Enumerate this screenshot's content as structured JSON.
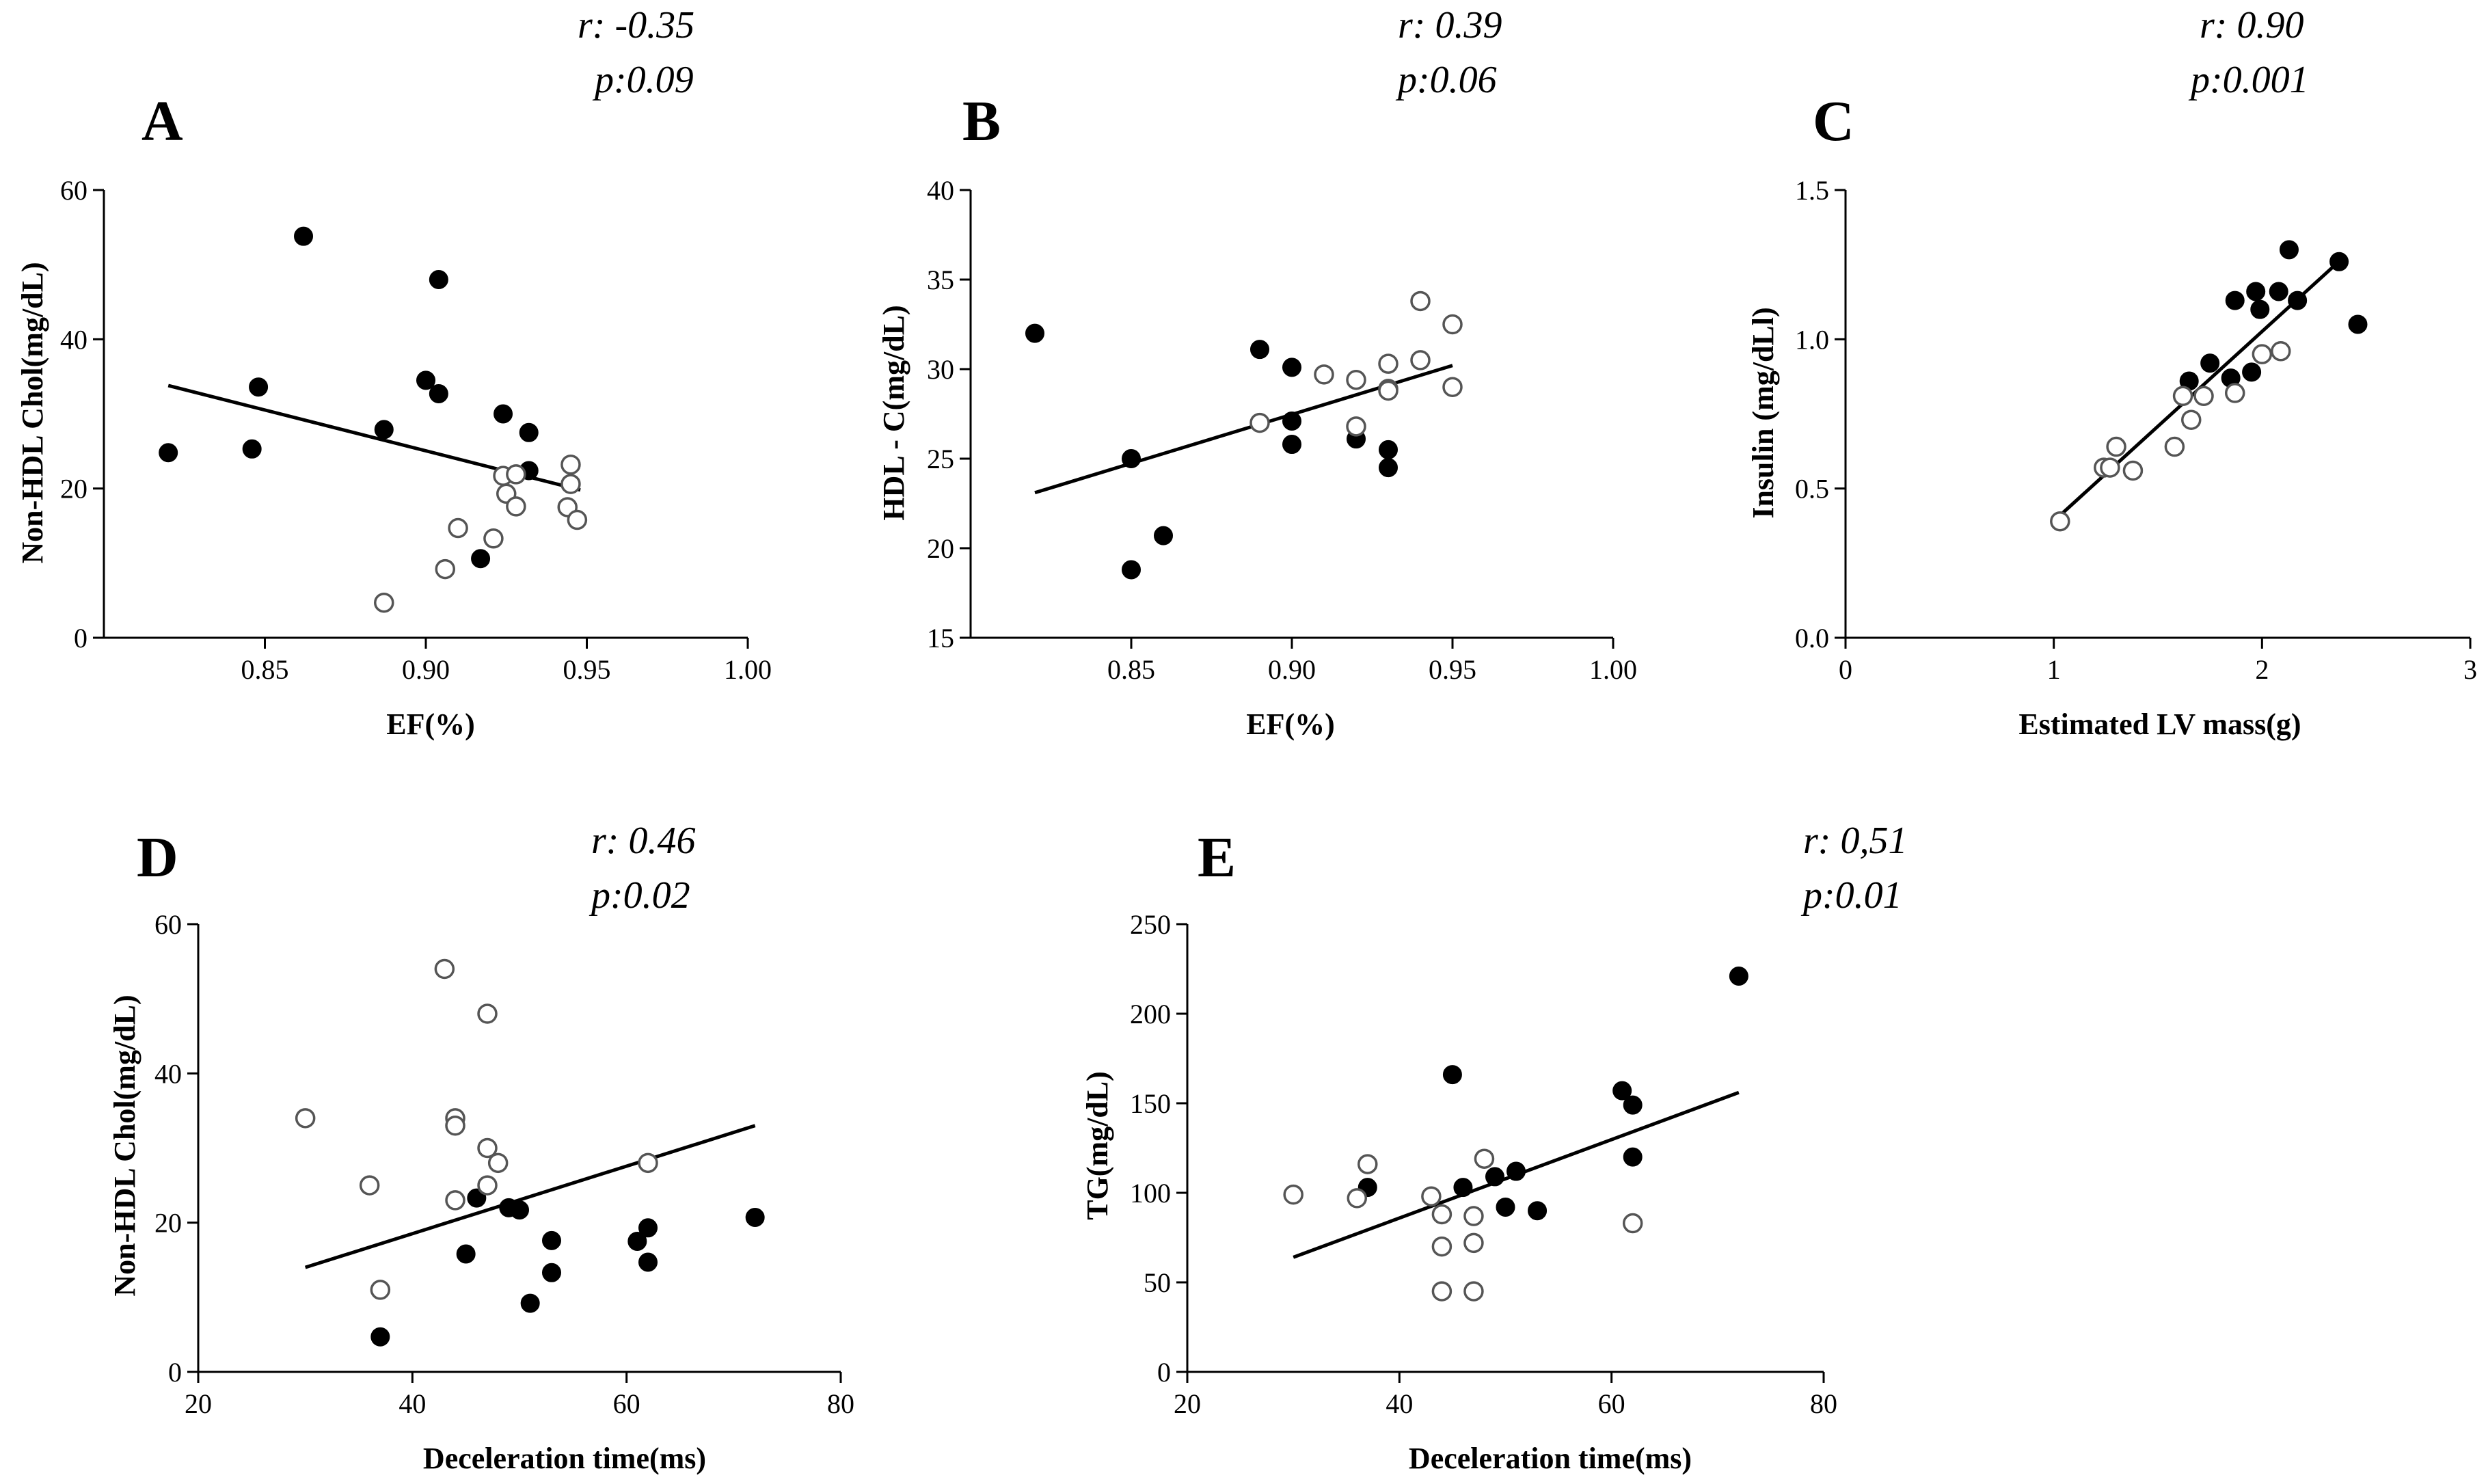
{
  "chart_data": [
    {
      "id": "A",
      "type": "scatter",
      "panel_label": "A",
      "stats": [
        "r: -0.35",
        "p:0.09"
      ],
      "xlabel": "EF(%)",
      "ylabel": "Non-HDL Chol(mg/dL)",
      "xlim": [
        0.8,
        1.0
      ],
      "ylim": [
        0,
        60
      ],
      "xticks": [
        0.85,
        0.9,
        0.95,
        1.0
      ],
      "xtick_labels": [
        "0.85",
        "0.90",
        "0.95",
        "1.00"
      ],
      "yticks": [
        0,
        20,
        40,
        60
      ],
      "ytick_labels": [
        "0",
        "20",
        "40",
        "60"
      ],
      "series": [
        {
          "name": "filled",
          "fill": "#000000",
          "points": [
            [
              0.82,
              24.8
            ],
            [
              0.846,
              25.3
            ],
            [
              0.848,
              33.6
            ],
            [
              0.862,
              53.8
            ],
            [
              0.887,
              27.9
            ],
            [
              0.9,
              34.5
            ],
            [
              0.904,
              32.7
            ],
            [
              0.904,
              48.0
            ],
            [
              0.917,
              10.6
            ],
            [
              0.924,
              30.0
            ],
            [
              0.932,
              27.5
            ],
            [
              0.932,
              22.4
            ]
          ]
        },
        {
          "name": "open",
          "fill": "none",
          "points": [
            [
              0.887,
              4.7
            ],
            [
              0.906,
              9.2
            ],
            [
              0.91,
              14.7
            ],
            [
              0.921,
              13.3
            ],
            [
              0.924,
              21.7
            ],
            [
              0.925,
              19.3
            ],
            [
              0.928,
              17.6
            ],
            [
              0.928,
              21.9
            ],
            [
              0.944,
              17.5
            ],
            [
              0.945,
              23.2
            ],
            [
              0.945,
              20.6
            ],
            [
              0.947,
              15.8
            ]
          ]
        }
      ],
      "fit_line": [
        [
          0.82,
          33.8
        ],
        [
          0.948,
          19.8
        ]
      ]
    },
    {
      "id": "B",
      "type": "scatter",
      "panel_label": "B",
      "stats": [
        "r: 0.39",
        "p:0.06"
      ],
      "xlabel": "EF(%)",
      "ylabel": "HDL - C(mg/dL)",
      "xlim": [
        0.8,
        1.0
      ],
      "ylim": [
        15,
        40
      ],
      "xticks": [
        0.85,
        0.9,
        0.95,
        1.0
      ],
      "xtick_labels": [
        "0.85",
        "0.90",
        "0.95",
        "1.00"
      ],
      "yticks": [
        15,
        20,
        25,
        30,
        35,
        40
      ],
      "ytick_labels": [
        "15",
        "20",
        "25",
        "30",
        "35",
        "40"
      ],
      "series": [
        {
          "name": "filled",
          "fill": "#000000",
          "points": [
            [
              0.82,
              32.0
            ],
            [
              0.85,
              25.0
            ],
            [
              0.85,
              18.8
            ],
            [
              0.86,
              20.7
            ],
            [
              0.89,
              31.1
            ],
            [
              0.9,
              30.1
            ],
            [
              0.9,
              27.1
            ],
            [
              0.9,
              25.8
            ],
            [
              0.92,
              26.1
            ],
            [
              0.93,
              25.5
            ],
            [
              0.93,
              24.5
            ]
          ]
        },
        {
          "name": "open",
          "fill": "none",
          "points": [
            [
              0.89,
              27.0
            ],
            [
              0.91,
              29.7
            ],
            [
              0.92,
              29.4
            ],
            [
              0.92,
              26.8
            ],
            [
              0.93,
              30.3
            ],
            [
              0.93,
              28.9
            ],
            [
              0.93,
              28.8
            ],
            [
              0.94,
              33.8
            ],
            [
              0.94,
              30.5
            ],
            [
              0.95,
              32.5
            ],
            [
              0.95,
              29.0
            ]
          ]
        }
      ],
      "fit_line": [
        [
          0.82,
          23.1
        ],
        [
          0.95,
          30.2
        ]
      ]
    },
    {
      "id": "C",
      "type": "scatter",
      "panel_label": "C",
      "stats": [
        "r: 0.90",
        "p:0.001"
      ],
      "xlabel": "Estimated LV mass(g)",
      "ylabel": "Insulin (mg/dLl)",
      "xlim": [
        0,
        3
      ],
      "ylim": [
        0.0,
        1.5
      ],
      "xticks": [
        0,
        1,
        2,
        3
      ],
      "xtick_labels": [
        "0",
        "1",
        "2",
        "3"
      ],
      "yticks": [
        0.0,
        0.5,
        1.0,
        1.5
      ],
      "ytick_labels": [
        "0.0",
        "0.5",
        "1.0",
        "1.5"
      ],
      "series": [
        {
          "name": "filled",
          "fill": "#000000",
          "points": [
            [
              1.65,
              0.86
            ],
            [
              1.75,
              0.92
            ],
            [
              1.85,
              0.87
            ],
            [
              1.87,
              1.13
            ],
            [
              1.95,
              0.89
            ],
            [
              1.97,
              1.16
            ],
            [
              1.99,
              1.1
            ],
            [
              2.08,
              1.16
            ],
            [
              2.13,
              1.3
            ],
            [
              2.17,
              1.13
            ],
            [
              2.37,
              1.26
            ],
            [
              2.46,
              1.05
            ]
          ]
        },
        {
          "name": "open",
          "fill": "none",
          "points": [
            [
              1.03,
              0.39
            ],
            [
              1.24,
              0.57
            ],
            [
              1.27,
              0.57
            ],
            [
              1.3,
              0.64
            ],
            [
              1.38,
              0.56
            ],
            [
              1.58,
              0.64
            ],
            [
              1.62,
              0.81
            ],
            [
              1.66,
              0.73
            ],
            [
              1.72,
              0.81
            ],
            [
              1.87,
              0.82
            ],
            [
              2.0,
              0.95
            ],
            [
              2.09,
              0.96
            ]
          ]
        }
      ],
      "fit_line": [
        [
          1.03,
          0.41
        ],
        [
          2.4,
          1.28
        ]
      ]
    },
    {
      "id": "D",
      "type": "scatter",
      "panel_label": "D",
      "stats": [
        "r: 0.46",
        "p:0.02"
      ],
      "xlabel": "Deceleration time(ms)",
      "ylabel": "Non-HDL Chol(mg/dL)",
      "xlim": [
        20,
        80
      ],
      "ylim": [
        0,
        60
      ],
      "xticks": [
        20,
        40,
        60,
        80
      ],
      "xtick_labels": [
        "20",
        "40",
        "60",
        "80"
      ],
      "yticks": [
        0,
        20,
        40,
        60
      ],
      "ytick_labels": [
        "0",
        "20",
        "40",
        "60"
      ],
      "series": [
        {
          "name": "filled",
          "fill": "#000000",
          "points": [
            [
              37,
              4.7
            ],
            [
              45,
              15.8
            ],
            [
              46,
              23.3
            ],
            [
              49,
              22.0
            ],
            [
              50,
              21.7
            ],
            [
              51,
              9.2
            ],
            [
              53,
              17.6
            ],
            [
              53,
              13.3
            ],
            [
              61,
              17.5
            ],
            [
              62,
              19.3
            ],
            [
              62,
              14.7
            ],
            [
              72,
              20.7
            ]
          ]
        },
        {
          "name": "open",
          "fill": "none",
          "points": [
            [
              30,
              34.0
            ],
            [
              36,
              25.0
            ],
            [
              37,
              11.0
            ],
            [
              43,
              54.0
            ],
            [
              44,
              34.0
            ],
            [
              44,
              33.0
            ],
            [
              44,
              23.0
            ],
            [
              47,
              48.0
            ],
            [
              47,
              30.0
            ],
            [
              47,
              25.0
            ],
            [
              48,
              28.0
            ],
            [
              62,
              28.0
            ]
          ]
        }
      ],
      "fit_line": [
        [
          30,
          14.0
        ],
        [
          72,
          33.0
        ]
      ]
    },
    {
      "id": "E",
      "type": "scatter",
      "panel_label": "E",
      "stats": [
        "r: 0,51",
        "p:0.01"
      ],
      "xlabel": "Deceleration time(ms)",
      "ylabel": "TG(mg/dL)",
      "xlim": [
        20,
        80
      ],
      "ylim": [
        0,
        250
      ],
      "xticks": [
        20,
        40,
        60,
        80
      ],
      "xtick_labels": [
        "20",
        "40",
        "60",
        "80"
      ],
      "yticks": [
        0,
        50,
        100,
        150,
        200,
        250
      ],
      "ytick_labels": [
        "0",
        "50",
        "100",
        "150",
        "200",
        "250"
      ],
      "series": [
        {
          "name": "filled",
          "fill": "#000000",
          "points": [
            [
              37,
              103
            ],
            [
              45,
              166
            ],
            [
              46,
              103
            ],
            [
              49,
              109
            ],
            [
              50,
              92
            ],
            [
              51,
              112
            ],
            [
              53,
              90
            ],
            [
              61,
              157
            ],
            [
              62,
              149
            ],
            [
              62,
              120
            ],
            [
              72,
              221
            ]
          ]
        },
        {
          "name": "open",
          "fill": "none",
          "points": [
            [
              30,
              99
            ],
            [
              36,
              97
            ],
            [
              37,
              116
            ],
            [
              43,
              98
            ],
            [
              44,
              88
            ],
            [
              44,
              70
            ],
            [
              44,
              45
            ],
            [
              47,
              87
            ],
            [
              47,
              72
            ],
            [
              47,
              45
            ],
            [
              48,
              119
            ],
            [
              62,
              83
            ]
          ]
        }
      ],
      "fit_line": [
        [
          30,
          64
        ],
        [
          72,
          156
        ]
      ]
    }
  ]
}
